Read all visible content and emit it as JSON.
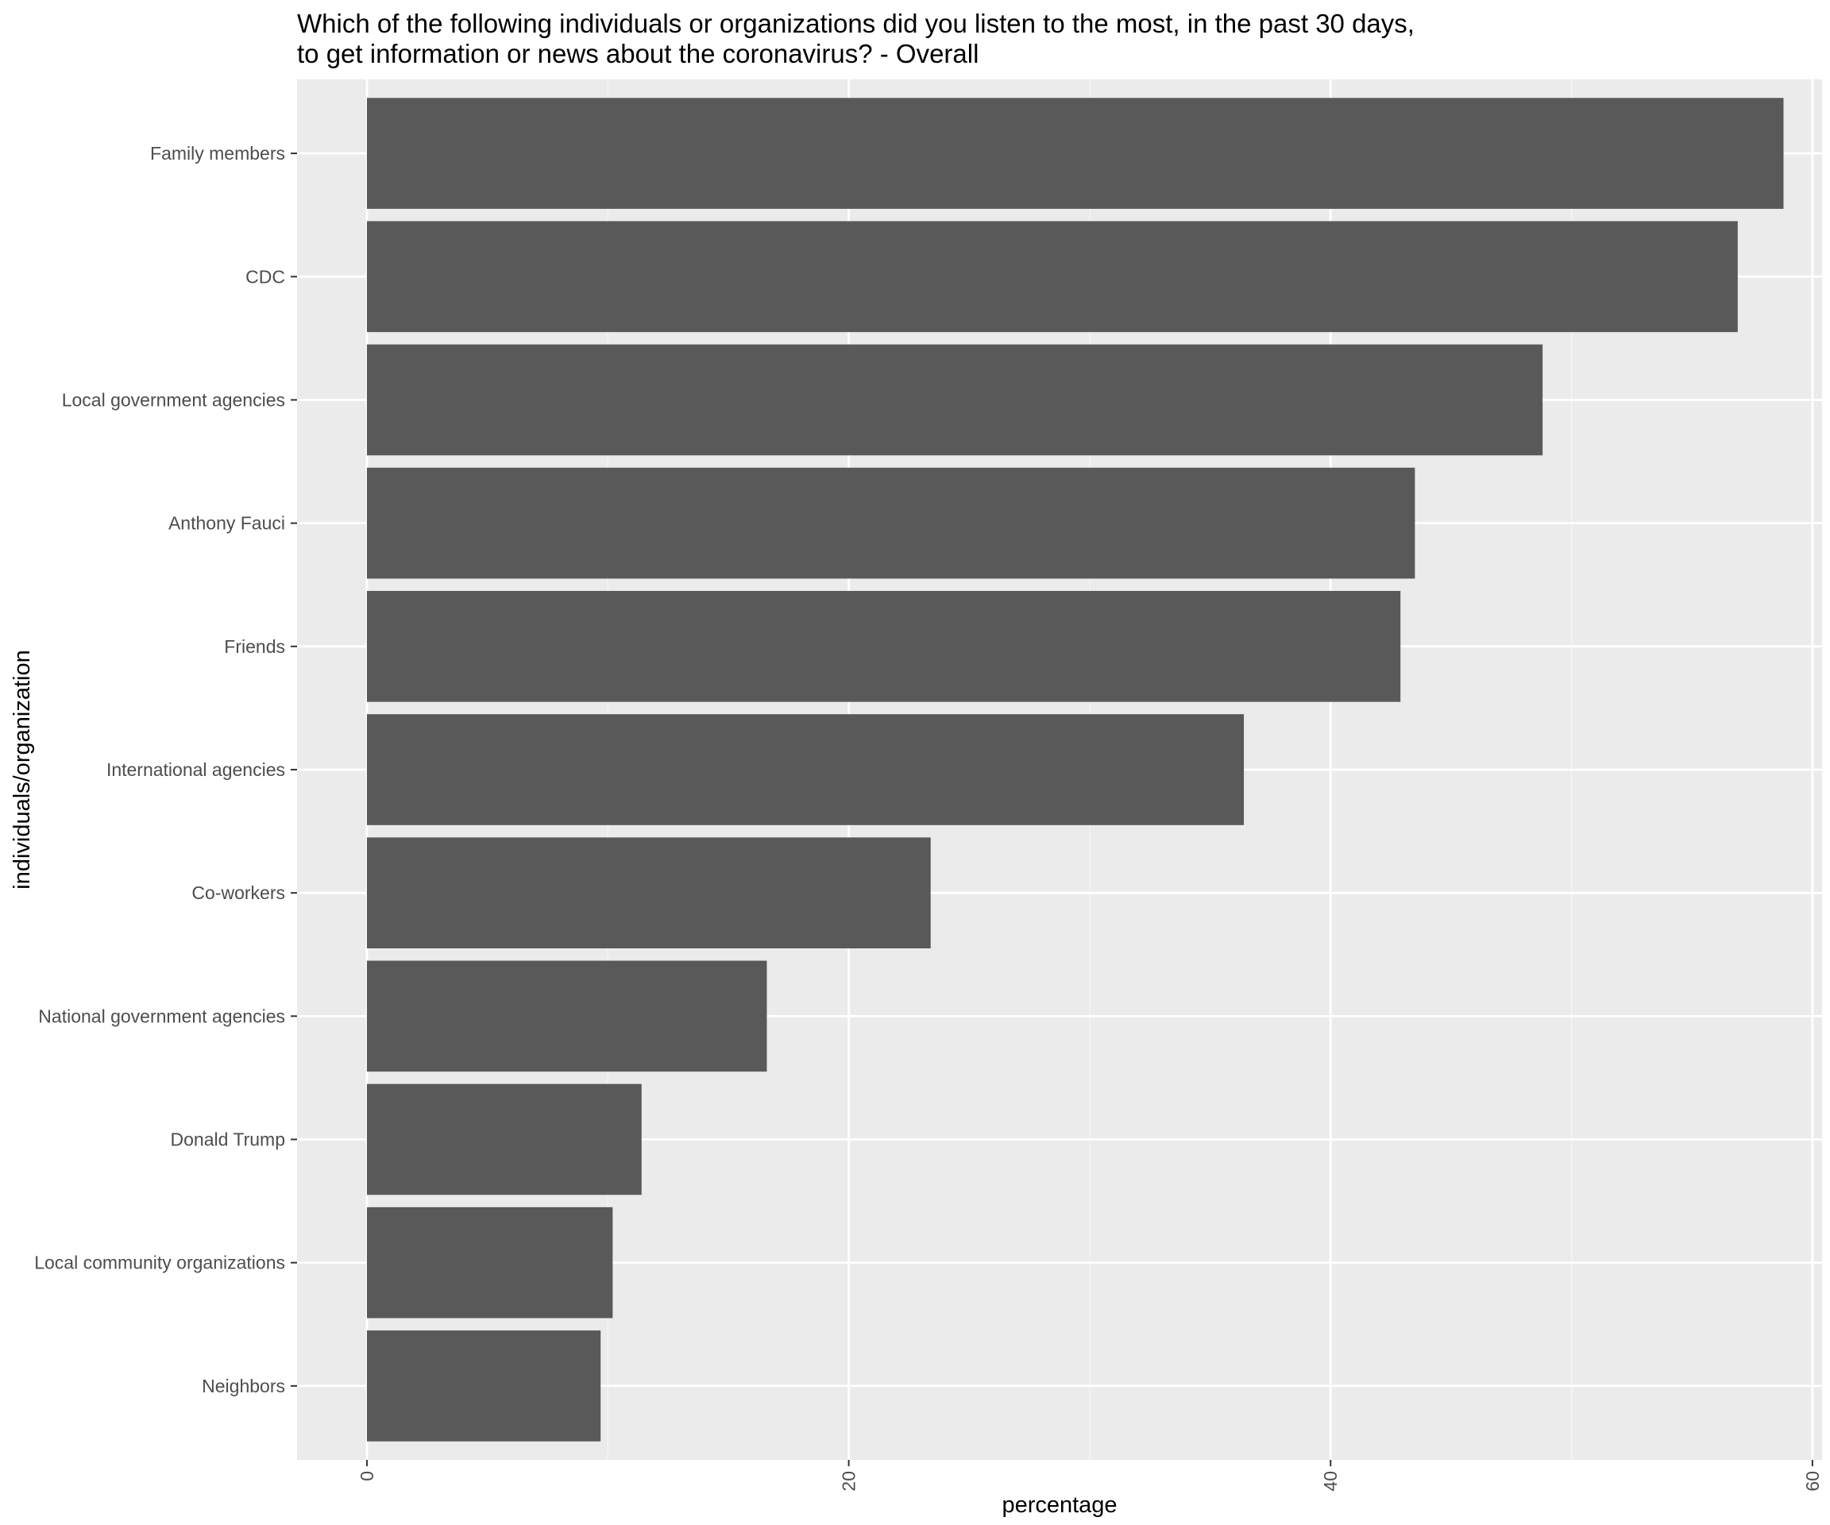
{
  "chart_data": {
    "type": "bar",
    "orientation": "horizontal",
    "title": [
      "Which of the following individuals or organizations did you listen to the most, in the past 30 days,",
      "to get information or news about the coronavirus? - Overall"
    ],
    "xlabel": "percentage",
    "ylabel": "individuals/organization",
    "categories": [
      "Family members",
      "CDC",
      "Local government agencies",
      "Anthony Fauci",
      "Friends",
      "International agencies",
      "Co-workers",
      "National government agencies",
      "Donald Trump",
      "Local community organizations",
      "Neighbors"
    ],
    "values": [
      58.8,
      56.9,
      48.8,
      43.5,
      42.9,
      36.4,
      23.4,
      16.6,
      11.4,
      10.2,
      9.7
    ],
    "xlim": [
      -2.9,
      60.4
    ],
    "xticks": [
      0,
      20,
      40,
      60
    ],
    "grid": true,
    "colors": {
      "bar": "#595959",
      "panel": "#ebebeb",
      "grid_major": "#ffffff",
      "grid_minor": "#f5f5f5",
      "tick_label": "#4d4d4d",
      "tick_mark": "#333333"
    }
  }
}
